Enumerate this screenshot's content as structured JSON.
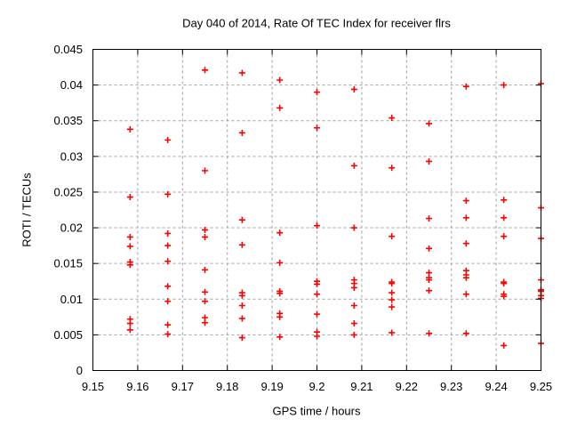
{
  "title": "Day 040 of 2014, Rate Of TEC Index for receiver flrs",
  "colors": {
    "marker": "#ff0000",
    "grid": "#a0a0a0",
    "axis": "#000000",
    "text": "#000000",
    "background": "#ffffff"
  },
  "chart_data": {
    "type": "scatter",
    "title": "Day 040 of 2014, Rate Of TEC Index for receiver flrs",
    "xlabel": "GPS time / hours",
    "ylabel": "ROTI / TECUs",
    "xlim": [
      9.15,
      9.25
    ],
    "ylim": [
      0,
      0.045
    ],
    "xticks": [
      9.15,
      9.16,
      9.17,
      9.18,
      9.19,
      9.2,
      9.21,
      9.22,
      9.23,
      9.24,
      9.25
    ],
    "xtick_labels": [
      "9.15",
      "9.16",
      "9.17",
      "9.18",
      "9.19",
      "9.2",
      "9.21",
      "9.22",
      "9.23",
      "9.24",
      "9.25"
    ],
    "yticks": [
      0,
      0.005,
      0.01,
      0.015,
      0.02,
      0.025,
      0.03,
      0.035,
      0.04,
      0.045
    ],
    "ytick_labels": [
      "0",
      "0.005",
      "0.01",
      "0.015",
      "0.02",
      "0.025",
      "0.03",
      "0.035",
      "0.04",
      "0.045"
    ],
    "grid": true,
    "legend": "none",
    "marker": {
      "shape": "plus",
      "color": "#ff0000",
      "size": 7
    },
    "series": [
      {
        "name": "ROTI",
        "points": [
          [
            9.1583,
            0.0338
          ],
          [
            9.1583,
            0.0243
          ],
          [
            9.1583,
            0.0187
          ],
          [
            9.1583,
            0.0174
          ],
          [
            9.1583,
            0.0152
          ],
          [
            9.1583,
            0.0148
          ],
          [
            9.1583,
            0.0072
          ],
          [
            9.1583,
            0.0066
          ],
          [
            9.1583,
            0.0057
          ],
          [
            9.1667,
            0.0323
          ],
          [
            9.1667,
            0.0247
          ],
          [
            9.1667,
            0.0192
          ],
          [
            9.1667,
            0.0175
          ],
          [
            9.1667,
            0.0153
          ],
          [
            9.1667,
            0.0118
          ],
          [
            9.1667,
            0.0097
          ],
          [
            9.1667,
            0.0064
          ],
          [
            9.1667,
            0.0051
          ],
          [
            9.175,
            0.0421
          ],
          [
            9.175,
            0.028
          ],
          [
            9.175,
            0.0197
          ],
          [
            9.175,
            0.0187
          ],
          [
            9.175,
            0.0141
          ],
          [
            9.175,
            0.011
          ],
          [
            9.175,
            0.0097
          ],
          [
            9.175,
            0.0074
          ],
          [
            9.175,
            0.0067
          ],
          [
            9.1833,
            0.0417
          ],
          [
            9.1833,
            0.0333
          ],
          [
            9.1833,
            0.0211
          ],
          [
            9.1833,
            0.0176
          ],
          [
            9.1833,
            0.0109
          ],
          [
            9.1833,
            0.0105
          ],
          [
            9.1833,
            0.0091
          ],
          [
            9.1833,
            0.0073
          ],
          [
            9.1833,
            0.0046
          ],
          [
            9.1917,
            0.0407
          ],
          [
            9.1917,
            0.0368
          ],
          [
            9.1917,
            0.0193
          ],
          [
            9.1917,
            0.0151
          ],
          [
            9.1917,
            0.0111
          ],
          [
            9.1917,
            0.0108
          ],
          [
            9.1917,
            0.008
          ],
          [
            9.1917,
            0.0075
          ],
          [
            9.1917,
            0.0047
          ],
          [
            9.2,
            0.039
          ],
          [
            9.2,
            0.034
          ],
          [
            9.2,
            0.0203
          ],
          [
            9.2,
            0.0125
          ],
          [
            9.2,
            0.0121
          ],
          [
            9.2,
            0.0107
          ],
          [
            9.2,
            0.0079
          ],
          [
            9.2,
            0.0054
          ],
          [
            9.2,
            0.0048
          ],
          [
            9.2083,
            0.0394
          ],
          [
            9.2083,
            0.0287
          ],
          [
            9.2083,
            0.02
          ],
          [
            9.2083,
            0.0127
          ],
          [
            9.2083,
            0.0122
          ],
          [
            9.2083,
            0.0116
          ],
          [
            9.2083,
            0.0091
          ],
          [
            9.2083,
            0.0066
          ],
          [
            9.2083,
            0.005
          ],
          [
            9.2167,
            0.0354
          ],
          [
            9.2167,
            0.0284
          ],
          [
            9.2167,
            0.0188
          ],
          [
            9.2167,
            0.0124
          ],
          [
            9.2167,
            0.0122
          ],
          [
            9.2167,
            0.0109
          ],
          [
            9.2167,
            0.0099
          ],
          [
            9.2167,
            0.0089
          ],
          [
            9.2167,
            0.0053
          ],
          [
            9.225,
            0.0346
          ],
          [
            9.225,
            0.0293
          ],
          [
            9.225,
            0.0213
          ],
          [
            9.225,
            0.0171
          ],
          [
            9.225,
            0.0137
          ],
          [
            9.225,
            0.013
          ],
          [
            9.225,
            0.0127
          ],
          [
            9.225,
            0.0112
          ],
          [
            9.225,
            0.0052
          ],
          [
            9.2333,
            0.0398
          ],
          [
            9.2333,
            0.0238
          ],
          [
            9.2333,
            0.0214
          ],
          [
            9.2333,
            0.0178
          ],
          [
            9.2333,
            0.014
          ],
          [
            9.2333,
            0.0134
          ],
          [
            9.2333,
            0.013
          ],
          [
            9.2333,
            0.0107
          ],
          [
            9.2333,
            0.0052
          ],
          [
            9.2417,
            0.04
          ],
          [
            9.2417,
            0.0239
          ],
          [
            9.2417,
            0.0214
          ],
          [
            9.2417,
            0.0188
          ],
          [
            9.2417,
            0.0124
          ],
          [
            9.2417,
            0.0122
          ],
          [
            9.2417,
            0.0107
          ],
          [
            9.2417,
            0.0104
          ],
          [
            9.2417,
            0.0035
          ],
          [
            9.25,
            0.0402
          ],
          [
            9.25,
            0.0228
          ],
          [
            9.25,
            0.0185
          ],
          [
            9.25,
            0.0127
          ],
          [
            9.25,
            0.0113
          ],
          [
            9.25,
            0.0111
          ],
          [
            9.25,
            0.0105
          ],
          [
            9.25,
            0.0101
          ],
          [
            9.25,
            0.0038
          ]
        ]
      }
    ]
  }
}
